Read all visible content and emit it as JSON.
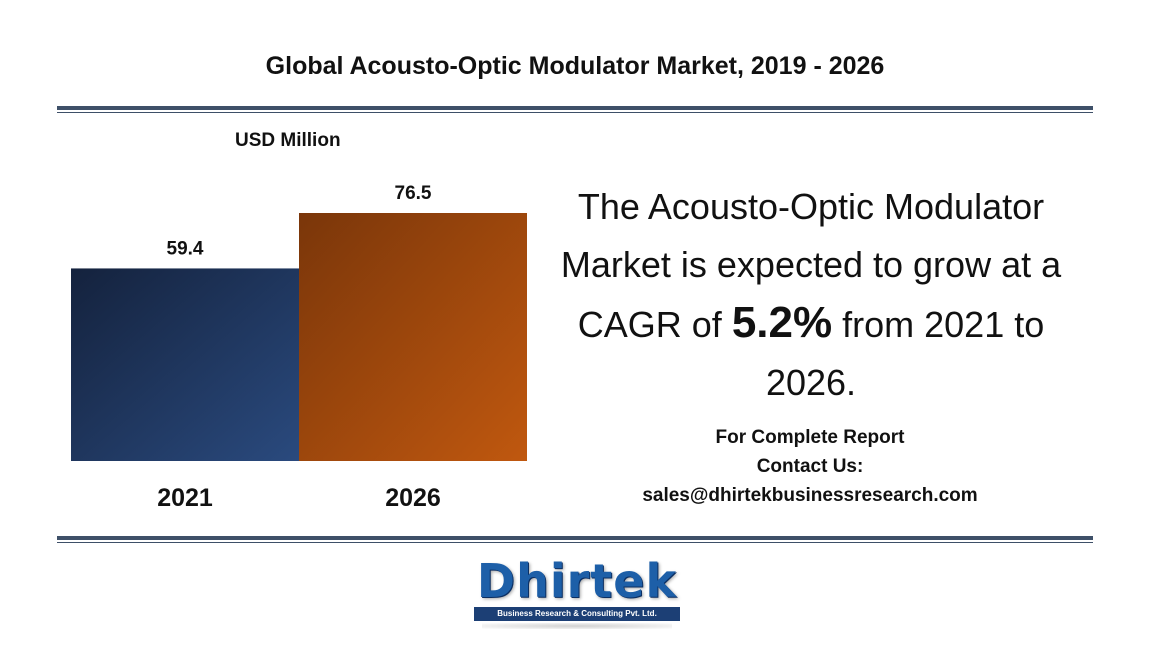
{
  "header": {
    "title": "Global Acousto-Optic Modulator Market, 2019 - 2026"
  },
  "chart_data": {
    "type": "bar",
    "unit_label": "USD Million",
    "categories": [
      "2021",
      "2026"
    ],
    "series": [
      {
        "values": [
          59.4,
          76.5
        ]
      }
    ],
    "data_labels": [
      "59.4",
      "76.5"
    ],
    "ylim": [
      0,
      85
    ],
    "grid": false,
    "bar_colors": [
      "#2a4a7e",
      "#c0580f"
    ],
    "bar_gradient_dark": [
      "#14223d",
      "#7a360a"
    ]
  },
  "headline": {
    "line_part1": "The Acousto-Optic Modulator Market is expected to grow at a CAGR of",
    "cagr": "5.2%",
    "line_part2": "from 2021 to 2026."
  },
  "contact": {
    "line1": "For Complete Report",
    "line2": "Contact Us:",
    "email": "sales@dhirtekbusinessresearch.com"
  },
  "logo": {
    "wordmark": "Dhirtek",
    "tagline": "Business Research & Consulting Pvt. Ltd.",
    "color": "#1d5fa8"
  },
  "colors": {
    "rule": "#3e5068"
  }
}
